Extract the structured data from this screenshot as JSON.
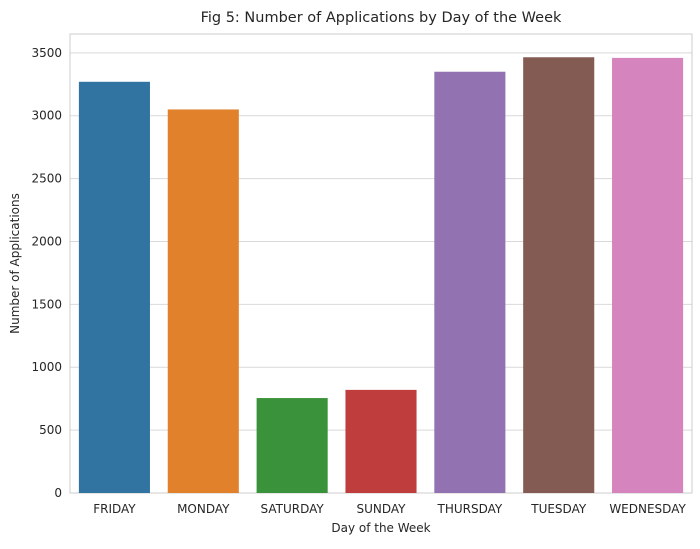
{
  "chart_data": {
    "type": "bar",
    "title": "Fig 5: Number of Applications by Day of the Week",
    "xlabel": "Day of the Week",
    "ylabel": "Number of Applications",
    "categories": [
      "FRIDAY",
      "MONDAY",
      "SATURDAY",
      "SUNDAY",
      "THURSDAY",
      "TUESDAY",
      "WEDNESDAY"
    ],
    "values": [
      3270,
      3050,
      755,
      820,
      3350,
      3465,
      3460
    ],
    "colors": [
      "#3274a1",
      "#e1812c",
      "#3a923a",
      "#c03d3e",
      "#9372b2",
      "#845b53",
      "#d684bd"
    ],
    "ylim": [
      0,
      3650
    ],
    "yticks": [
      0,
      500,
      1000,
      1500,
      2000,
      2500,
      3000,
      3500
    ],
    "grid": "horizontal",
    "legend": "none"
  }
}
